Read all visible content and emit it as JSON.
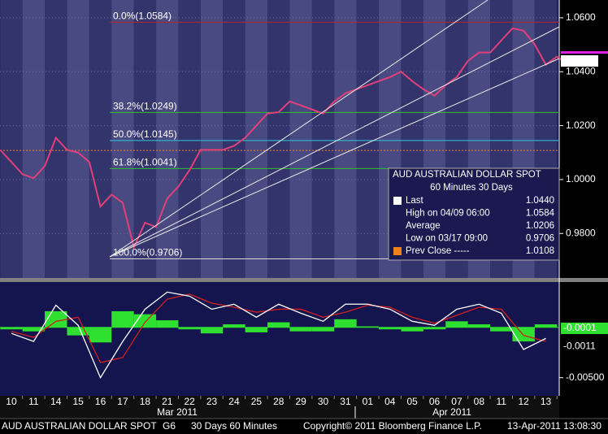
{
  "chart_data": [
    {
      "type": "line",
      "xlim": [
        -0.51,
        24.6
      ],
      "xticks": [
        {
          "value": 0,
          "label": "10"
        },
        {
          "value": 1,
          "label": "11"
        },
        {
          "value": 2,
          "label": "14"
        },
        {
          "value": 3,
          "label": "15"
        },
        {
          "value": 4,
          "label": "16"
        },
        {
          "value": 5,
          "label": "17"
        },
        {
          "value": 6,
          "label": "18"
        },
        {
          "value": 7,
          "label": "21"
        },
        {
          "value": 8,
          "label": "22"
        },
        {
          "value": 9,
          "label": "23"
        },
        {
          "value": 10,
          "label": "24"
        },
        {
          "value": 11,
          "label": "25"
        },
        {
          "value": 12,
          "label": "28"
        },
        {
          "value": 13,
          "label": "29"
        },
        {
          "value": 14,
          "label": "30"
        },
        {
          "value": 15,
          "label": "31"
        },
        {
          "value": 16,
          "label": "01"
        },
        {
          "value": 17,
          "label": "04"
        },
        {
          "value": 18,
          "label": "05"
        },
        {
          "value": 19,
          "label": "06"
        },
        {
          "value": 20,
          "label": "07"
        },
        {
          "value": 21,
          "label": "08"
        },
        {
          "value": 22,
          "label": "11"
        },
        {
          "value": 23,
          "label": "12"
        },
        {
          "value": 24,
          "label": "13"
        }
      ],
      "months": [
        "Mar 2011",
        "Apr 2011"
      ],
      "ylim": [
        0.9635,
        1.0666
      ],
      "yticks": [
        {
          "value": 0.98,
          "label": "0.9800"
        },
        {
          "value": 1.0,
          "label": "1.0000"
        },
        {
          "value": 1.02,
          "label": "1.0200"
        },
        {
          "value": 1.04,
          "label": "1.0400"
        },
        {
          "value": 1.06,
          "label": "1.0600"
        }
      ],
      "series": [
        {
          "color": "#e0407a",
          "x": [
            -0.5,
            0,
            0.5,
            1,
            1.5,
            2,
            2.5,
            3,
            3.5,
            4,
            4.5,
            5,
            5.5,
            6,
            6.5,
            7,
            7.5,
            8,
            8.5,
            9,
            9.5,
            10,
            10.5,
            11,
            11.5,
            12,
            12.5,
            13,
            13.5,
            14,
            14.5,
            15,
            15.5,
            16,
            16.5,
            17,
            17.5,
            18,
            18.5,
            19,
            19.5,
            20,
            20.5,
            21,
            21.5,
            22,
            22.5,
            23,
            23.5,
            24,
            24.5,
            24.8
          ],
          "values": [
            1.011,
            1.0065,
            1.002,
            1.0005,
            1.005,
            1.0155,
            1.011,
            1.01,
            1.0065,
            0.99,
            0.9944,
            0.9914,
            0.9749,
            0.984,
            0.9824,
            0.993,
            0.9974,
            1.0035,
            1.011,
            1.011,
            1.011,
            1.0125,
            1.0155,
            1.02,
            1.0245,
            1.025,
            1.029,
            1.0275,
            1.026,
            1.0245,
            1.029,
            1.032,
            1.0335,
            1.035,
            1.0365,
            1.038,
            1.04,
            1.0365,
            1.0335,
            1.0311,
            1.035,
            1.038,
            1.044,
            1.0471,
            1.0471,
            1.0516,
            1.0561,
            1.0552,
            1.0501,
            1.0426,
            1.0456,
            1.044
          ]
        }
      ],
      "levels": [
        {
          "value": 1.0584,
          "label": "0.0%(1.0584)",
          "color": "#c0202a"
        },
        {
          "value": 1.0249,
          "label": "38.2%(1.0249)",
          "color": "#30c030"
        },
        {
          "value": 1.0145,
          "label": "50.0%(1.0145)",
          "color": "#30c8d8"
        },
        {
          "value": 1.0041,
          "label": "61.8%(1.0041)",
          "color": "#30c030"
        },
        {
          "value": 0.9706,
          "label": "100.0%(0.9706)",
          "color": "#d8d8d8"
        }
      ],
      "last": {
        "value": 1.044,
        "label": "1.0440"
      },
      "legend": {
        "title": "AUD  AUSTRALIAN DOLLAR SPOT",
        "subtitle": "60 Minutes  30 Days",
        "rows": [
          {
            "label": "Last",
            "value": {
              "value": 1.044,
              "label": "1.0440"
            }
          },
          {
            "label": "High on 04/09 06:00",
            "value": {
              "value": 1.0584,
              "label": "1.0584"
            }
          },
          {
            "label": "Average",
            "value": {
              "value": 1.0206,
              "label": "1.0206"
            }
          },
          {
            "label": "Low on 03/17 09:00",
            "value": {
              "value": 0.9706,
              "label": "0.9706"
            }
          },
          {
            "label": "Prev Close -----",
            "value": {
              "value": 1.0108,
              "label": "1.0108"
            }
          }
        ]
      },
      "footer": [
        "AUD  AUSTRALIAN DOLLAR SPOT",
        "G6",
        "30 Days  60 Minutes",
        "Copyright© 2011 Bloomberg Finance L.P.",
        "13-Apr-2011 13:08:30"
      ]
    },
    {
      "type": "line",
      "xlim": [
        -0.51,
        24.6
      ],
      "ylim": [
        -0.0068,
        0.0045
      ],
      "yticks": [
        {
          "value": -0.005,
          "label": "-0.00500"
        }
      ],
      "x": [
        0,
        1,
        2,
        3,
        4,
        5,
        6,
        7,
        8,
        9,
        10,
        11,
        12,
        13,
        14,
        15,
        16,
        17,
        18,
        19,
        20,
        21,
        22,
        23,
        24
      ],
      "series": [
        {
          "kind": "bar",
          "color": "#30e030",
          "last": -0.0001,
          "values": [
            -0.0002,
            -0.0004,
            0.0016,
            -0.0008,
            -0.0015,
            0.0016,
            0.0013,
            0.0007,
            -0.0002,
            -0.0006,
            0.0003,
            -0.0005,
            0.0005,
            -0.0004,
            -0.0004,
            0.0008,
            0.0001,
            -0.0002,
            -0.0004,
            -0.0002,
            0.0006,
            0.0003,
            -0.0004,
            -0.0014,
            0.0003
          ]
        },
        {
          "kind": "line",
          "color": "#d02020",
          "values": [
            -0.0004,
            -0.001,
            0.0006,
            0.001,
            -0.0035,
            -0.003,
            0.0005,
            0.0028,
            0.0033,
            0.0024,
            0.002,
            0.0015,
            0.0018,
            0.0018,
            0.001,
            0.0015,
            0.0022,
            0.002,
            0.001,
            0.0004,
            0.0012,
            0.002,
            0.0018,
            -0.0008,
            -0.0014
          ]
        },
        {
          "kind": "line",
          "color": "#ffffff",
          "last": -0.0011,
          "values": [
            -0.0006,
            -0.0014,
            0.0022,
            0.0002,
            -0.005,
            -0.0014,
            0.0018,
            0.0035,
            0.0031,
            0.0018,
            0.0023,
            0.001,
            0.0023,
            0.0014,
            0.0006,
            0.0023,
            0.0023,
            0.0018,
            0.0006,
            0.0002,
            0.0018,
            0.0023,
            0.0014,
            -0.0022,
            -0.0011
          ]
        }
      ]
    }
  ]
}
